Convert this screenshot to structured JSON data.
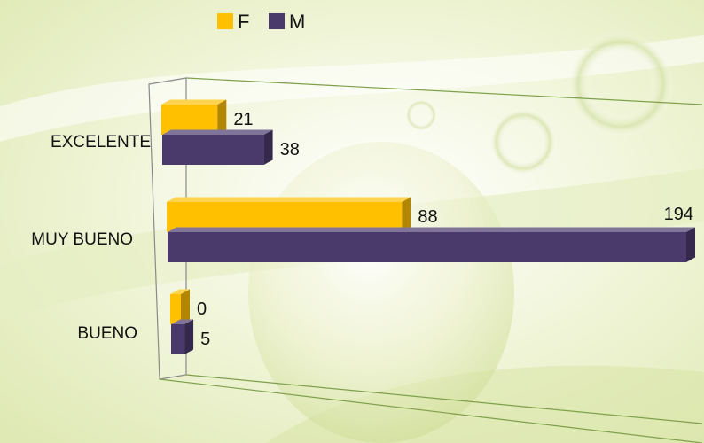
{
  "chart_data": {
    "type": "bar",
    "orientation": "horizontal",
    "three_d": true,
    "categories": [
      "EXCELENTE",
      "MUY BUENO",
      "BUENO"
    ],
    "series": [
      {
        "name": "F",
        "values": [
          21,
          88,
          0
        ],
        "color": "#ffc000"
      },
      {
        "name": "M",
        "values": [
          38,
          194,
          5
        ],
        "color": "#4a3a6c"
      }
    ],
    "legend_position": "top",
    "data_labels": true,
    "value_axis_max": 194
  }
}
